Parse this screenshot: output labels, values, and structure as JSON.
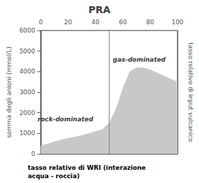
{
  "chart_data": {
    "type": "area",
    "title": "PRA",
    "xlim": [
      0,
      100
    ],
    "ylim": [
      0,
      6000
    ],
    "xticks": [
      0,
      20,
      40,
      60,
      80,
      100
    ],
    "yticks": [
      0,
      1000,
      2000,
      3000,
      4000,
      5000,
      6000
    ],
    "grid": false,
    "ylabel": "somma degli anioni (mmol/L)",
    "y2label": "tasso relativo di input vulcanico",
    "xlabel": "tasso relativo di WRI (interazione\nacqua - roccia)",
    "color": "#c8c8c8",
    "polygons": [
      {
        "x": [
          0,
          0,
          5,
          15,
          30,
          45,
          50,
          50,
          0
        ],
        "y": [
          0,
          400,
          500,
          700,
          900,
          1200,
          1500,
          0,
          0
        ]
      },
      {
        "x": [
          50,
          50,
          55,
          60,
          65,
          70,
          75,
          80,
          90,
          100,
          100,
          80,
          70,
          60,
          55,
          50
        ],
        "y": [
          0,
          1500,
          2200,
          3200,
          4000,
          4200,
          4200,
          4100,
          3800,
          3500,
          0,
          0,
          0,
          0,
          0,
          0
        ]
      }
    ],
    "divider_x": 50,
    "annotations": [
      {
        "text": "rock-dominated",
        "x": 18,
        "y": 1700
      },
      {
        "text": "gas-dominated",
        "x": 72,
        "y": 4600
      }
    ]
  }
}
